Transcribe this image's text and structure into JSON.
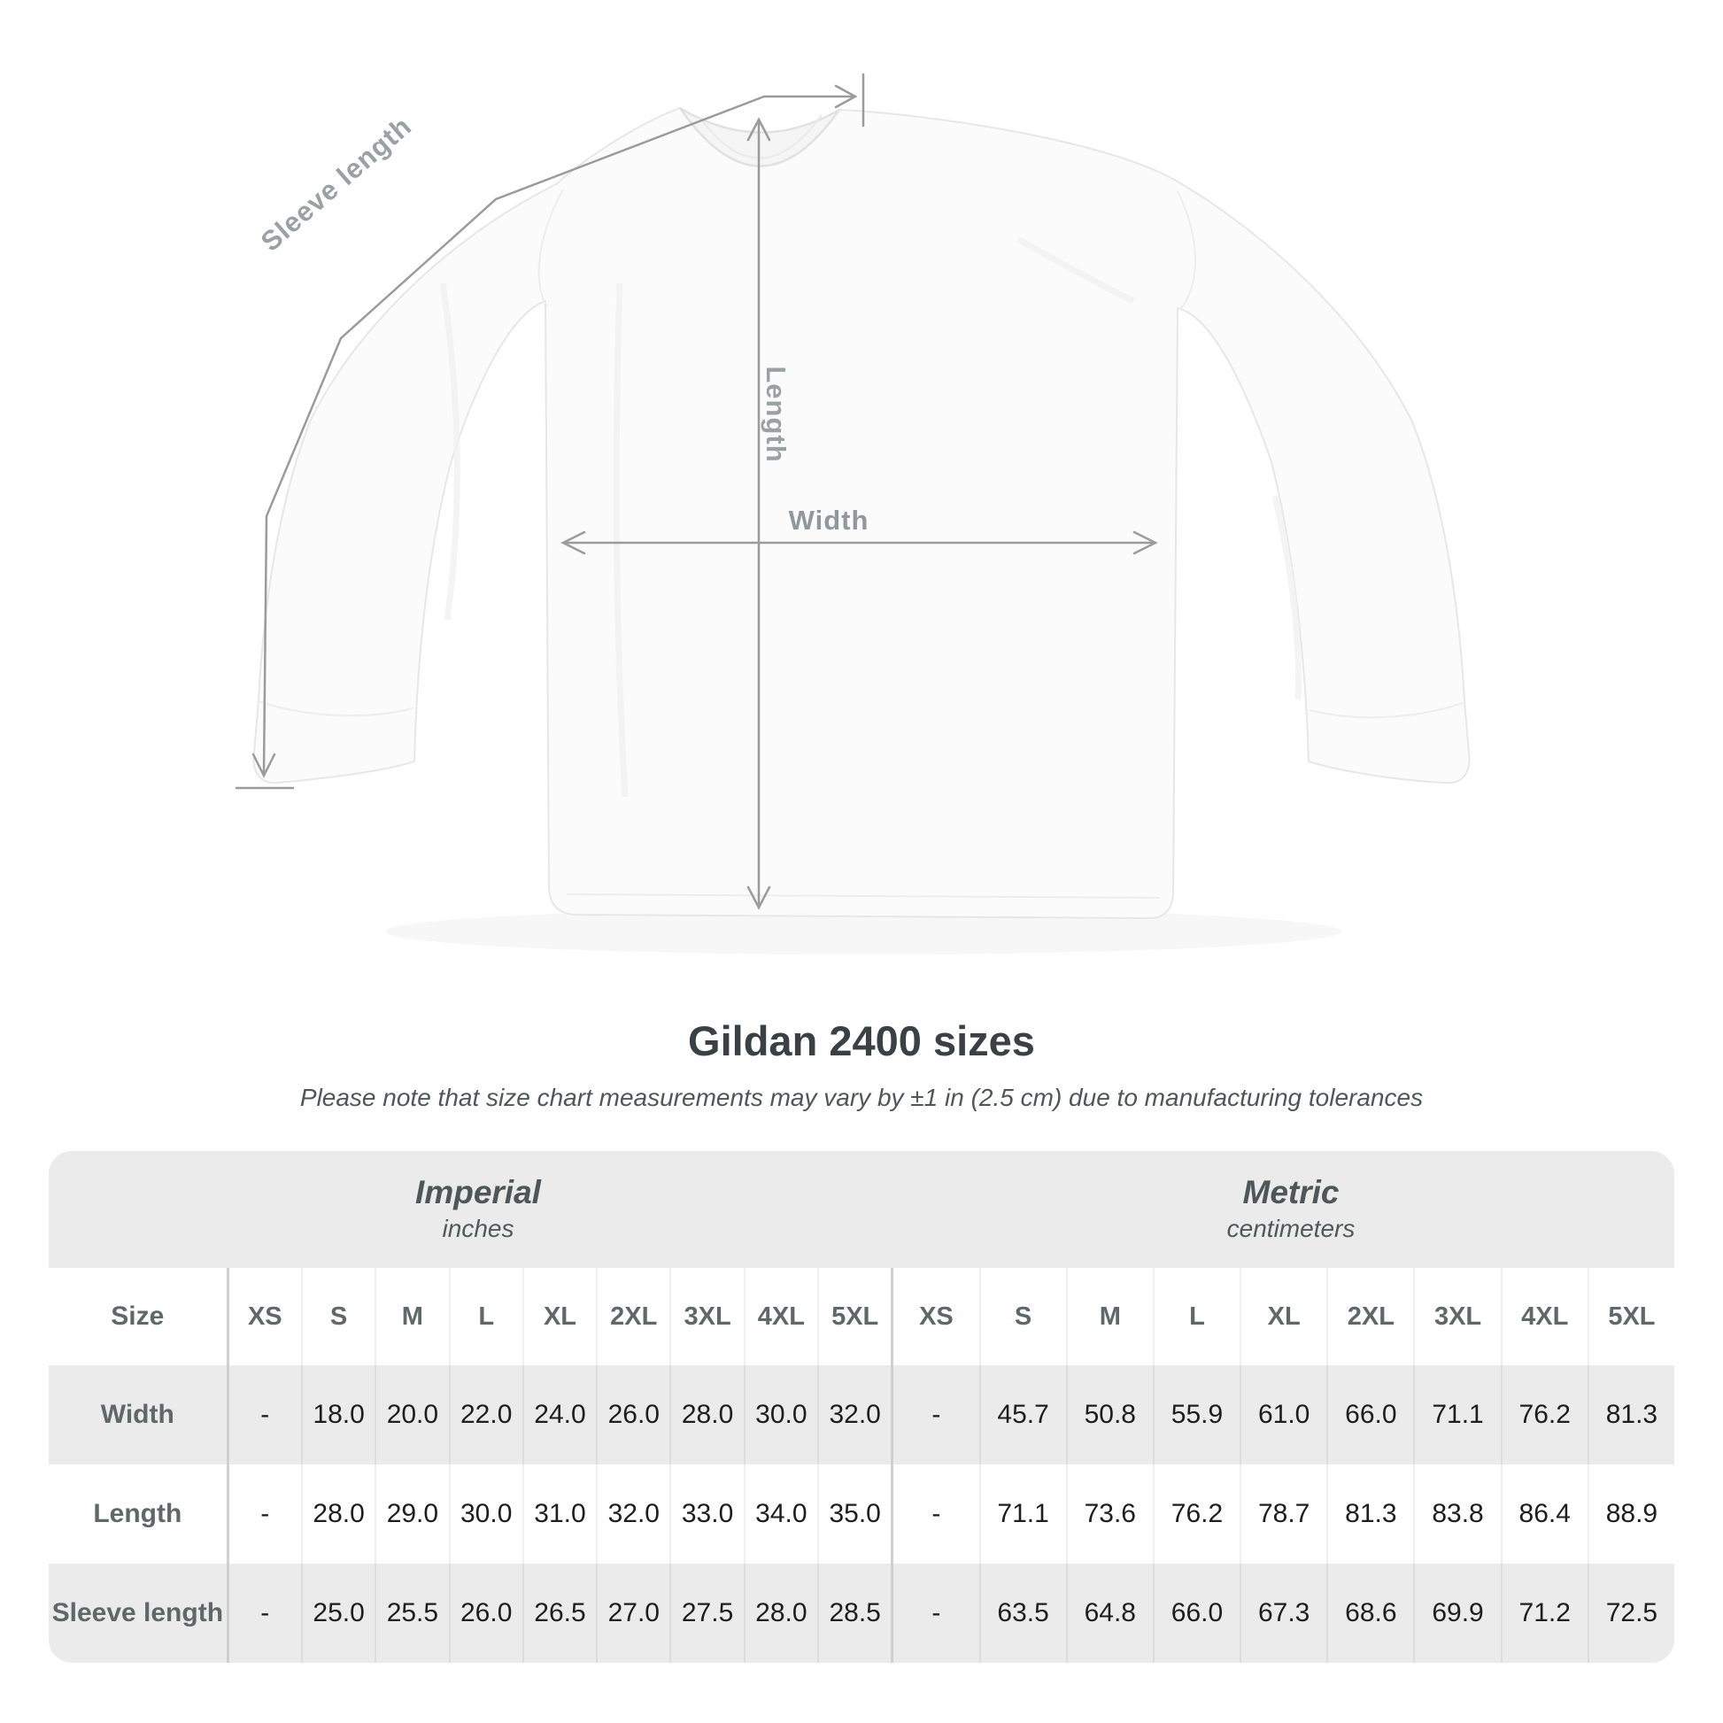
{
  "diagram": {
    "sleeve_length_label": "Sleeve length",
    "length_label": "Length",
    "width_label": "Width"
  },
  "title": "Gildan 2400 sizes",
  "subtitle": "Please note that size chart measurements may vary by ±1 in (2.5 cm) due to manufacturing tolerances",
  "colors": {
    "table_stripe": "#ebebeb",
    "value_text": "#1e1e1e",
    "label_gray": "#5f6868",
    "measure_line_gray": "#9b9b9b"
  },
  "table": {
    "imperial": {
      "title": "Imperial",
      "unit": "inches"
    },
    "metric": {
      "title": "Metric",
      "unit": "centimeters"
    },
    "size_header": "Size",
    "imperial_sizes": [
      "XS",
      "S",
      "M",
      "L",
      "XL",
      "2XL",
      "3XL",
      "4XL",
      "5XL"
    ],
    "metric_sizes": [
      "XS",
      "S",
      "M",
      "L",
      "XL",
      "2XL",
      "3XL",
      "4XL",
      "5XL"
    ],
    "rows": [
      {
        "label": "Width",
        "imperial": [
          "-",
          "18.0",
          "20.0",
          "22.0",
          "24.0",
          "26.0",
          "28.0",
          "30.0",
          "32.0"
        ],
        "metric": [
          "-",
          "45.7",
          "50.8",
          "55.9",
          "61.0",
          "66.0",
          "71.1",
          "76.2",
          "81.3"
        ]
      },
      {
        "label": "Length",
        "imperial": [
          "-",
          "28.0",
          "29.0",
          "30.0",
          "31.0",
          "32.0",
          "33.0",
          "34.0",
          "35.0"
        ],
        "metric": [
          "-",
          "71.1",
          "73.6",
          "76.2",
          "78.7",
          "81.3",
          "83.8",
          "86.4",
          "88.9"
        ]
      },
      {
        "label": "Sleeve length",
        "imperial": [
          "-",
          "25.0",
          "25.5",
          "26.0",
          "26.5",
          "27.0",
          "27.5",
          "28.0",
          "28.5"
        ],
        "metric": [
          "-",
          "63.5",
          "64.8",
          "66.0",
          "67.3",
          "68.6",
          "69.9",
          "71.2",
          "72.5"
        ]
      }
    ]
  }
}
